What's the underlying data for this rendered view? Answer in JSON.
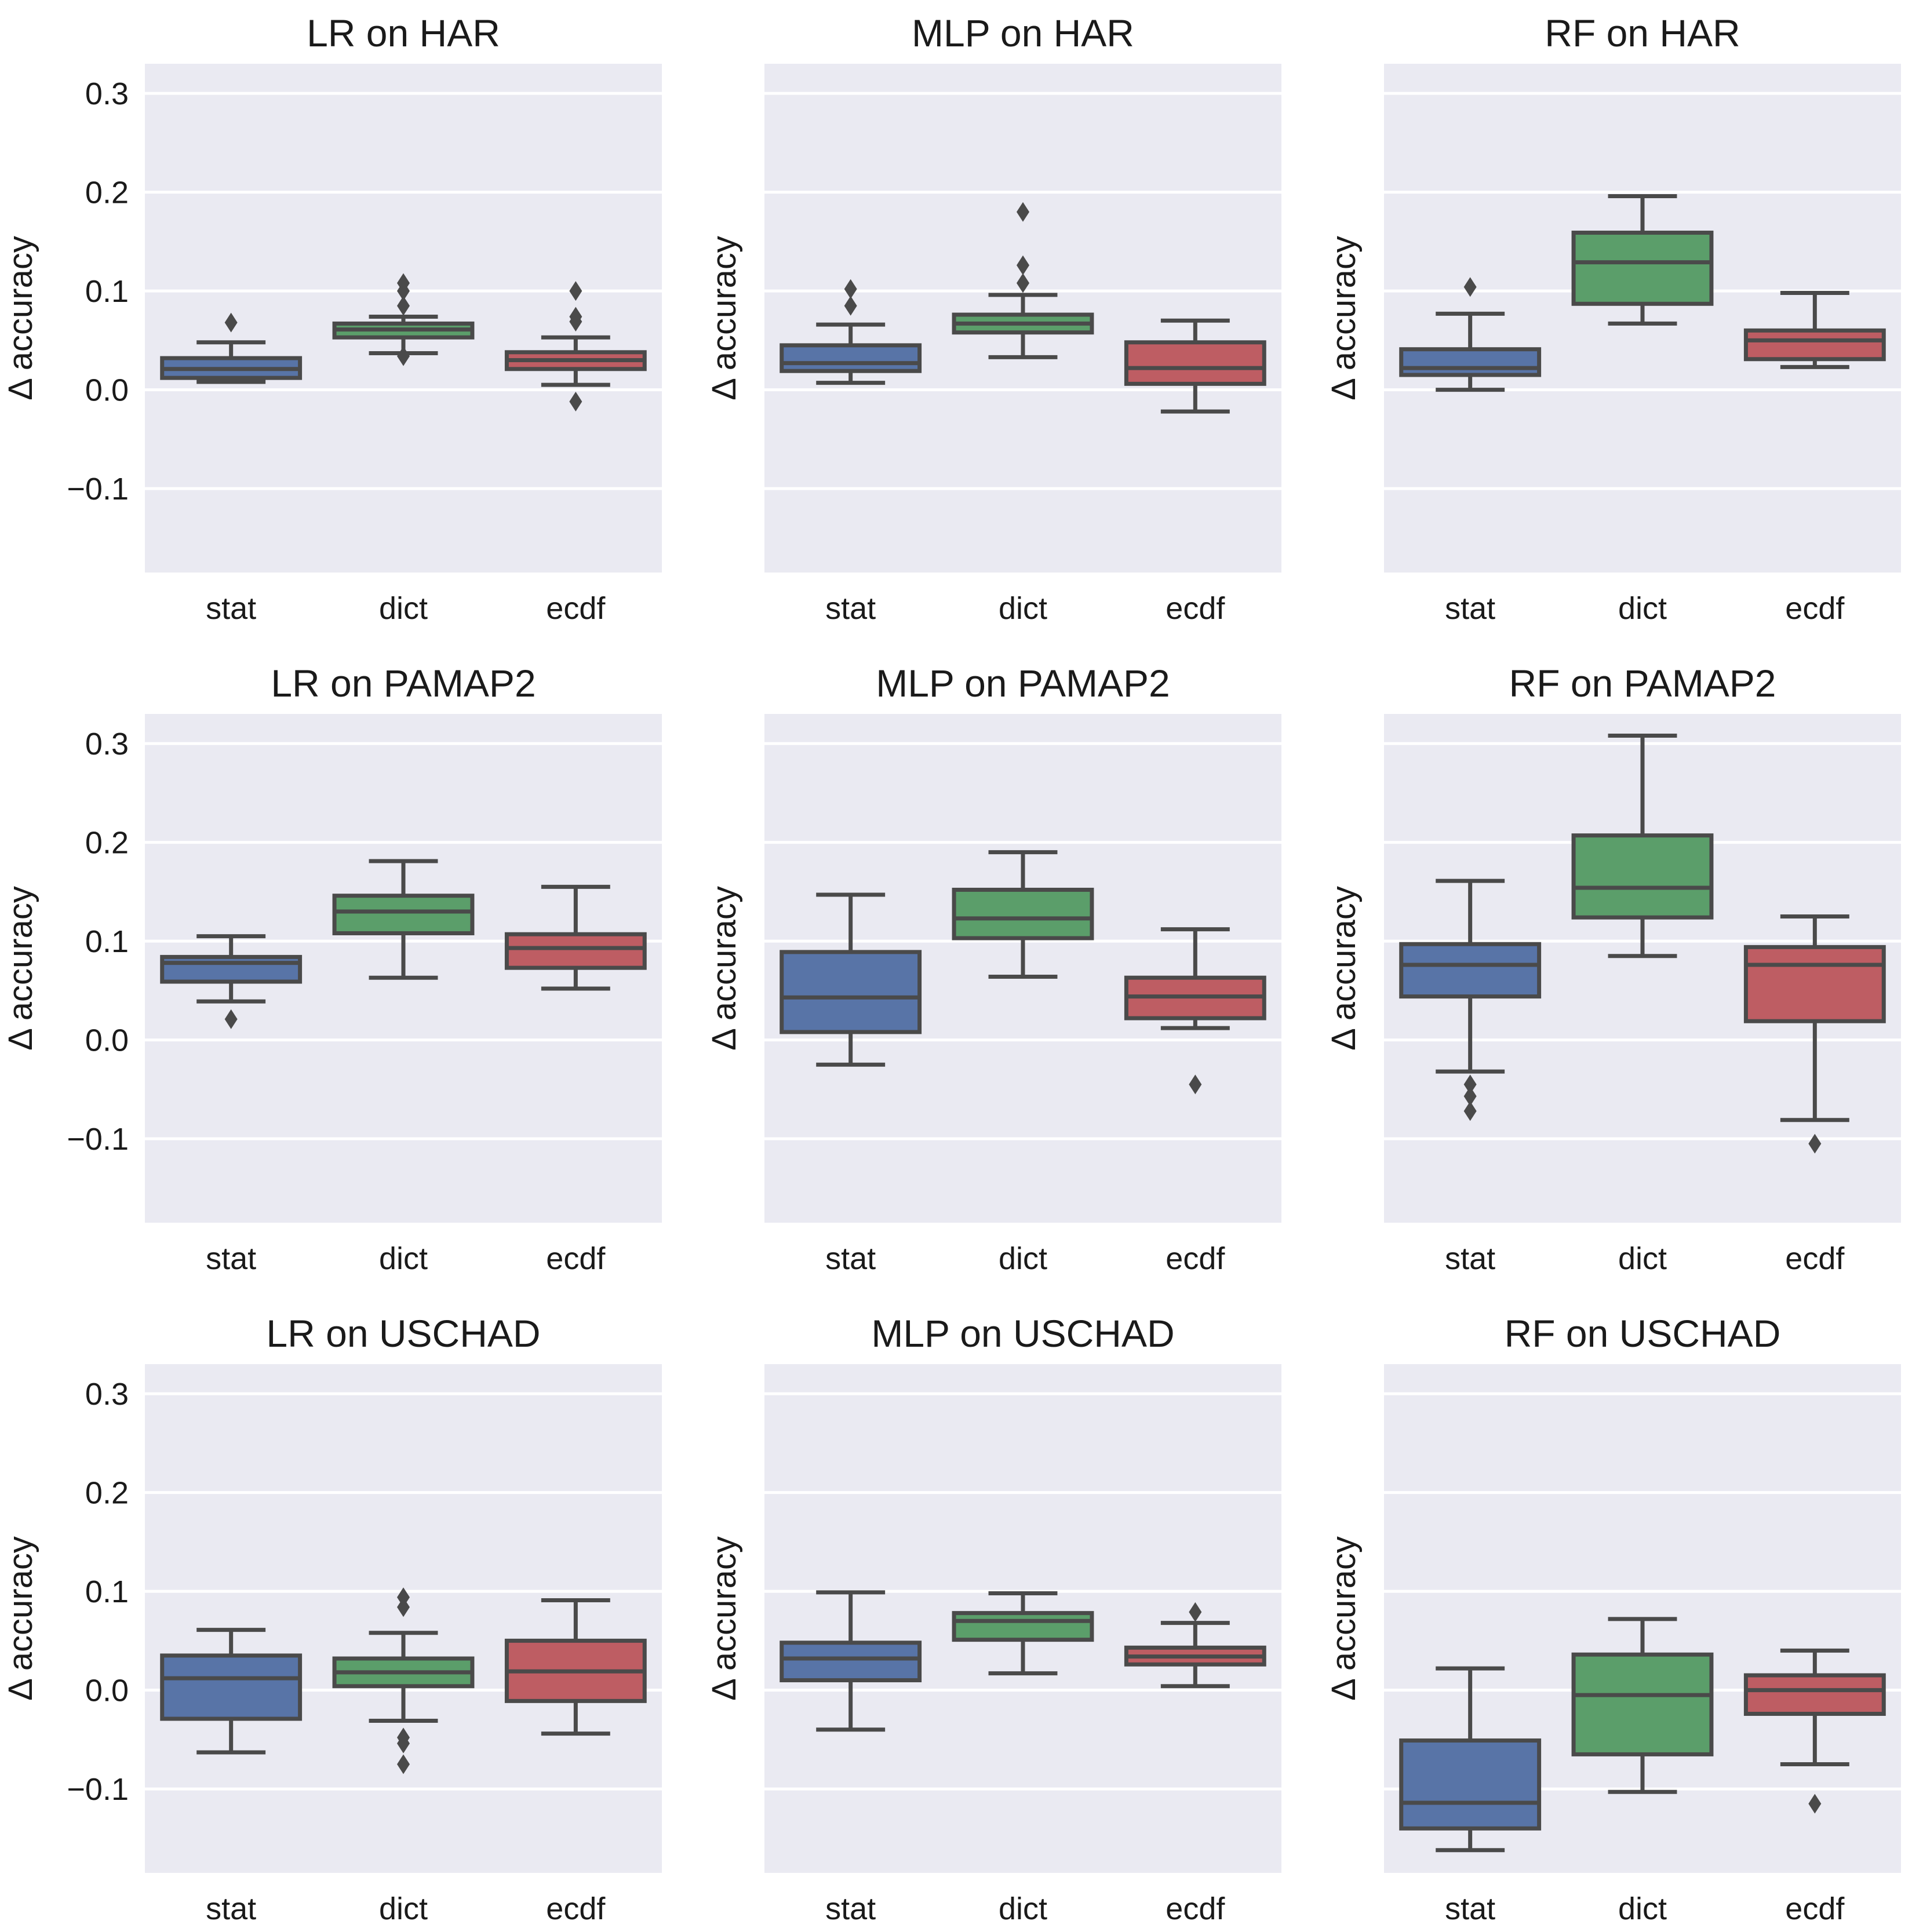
{
  "chart_data": {
    "type": "box",
    "layout": "3x3 grid",
    "shared_y": true,
    "ylabel": "Δ accuracy",
    "ylim": [
      -0.185,
      0.33
    ],
    "yticks": [
      -0.1,
      0.0,
      0.1,
      0.2,
      0.3
    ],
    "ytick_labels": [
      "−0.1",
      "0.0",
      "0.1",
      "0.2",
      "0.3"
    ],
    "grid": true,
    "categories": [
      "stat",
      "dict",
      "ecdf"
    ],
    "colors": {
      "stat": "#5874a7",
      "dict": "#5b9e6a",
      "ecdf": "#be5d63"
    },
    "panels": [
      {
        "title": "LR on HAR",
        "boxes": [
          {
            "whislo": 0.008,
            "q1": 0.012,
            "med": 0.021,
            "q3": 0.032,
            "whishi": 0.048,
            "fliers": [
              0.068
            ]
          },
          {
            "whislo": 0.037,
            "q1": 0.053,
            "med": 0.061,
            "q3": 0.067,
            "whishi": 0.074,
            "fliers": [
              0.108,
              0.1,
              0.085,
              0.034
            ]
          },
          {
            "whislo": 0.005,
            "q1": 0.021,
            "med": 0.03,
            "q3": 0.038,
            "whishi": 0.053,
            "fliers": [
              0.1,
              0.074,
              0.069,
              -0.012
            ]
          }
        ]
      },
      {
        "title": "MLP on HAR",
        "boxes": [
          {
            "whislo": 0.007,
            "q1": 0.019,
            "med": 0.027,
            "q3": 0.045,
            "whishi": 0.066,
            "fliers": [
              0.102,
              0.085
            ]
          },
          {
            "whislo": 0.033,
            "q1": 0.058,
            "med": 0.067,
            "q3": 0.076,
            "whishi": 0.096,
            "fliers": [
              0.18,
              0.126,
              0.108
            ]
          },
          {
            "whislo": -0.022,
            "q1": 0.006,
            "med": 0.022,
            "q3": 0.048,
            "whishi": 0.07,
            "fliers": []
          }
        ]
      },
      {
        "title": "RF on HAR",
        "boxes": [
          {
            "whislo": 0.0,
            "q1": 0.015,
            "med": 0.022,
            "q3": 0.041,
            "whishi": 0.077,
            "fliers": [
              0.104
            ]
          },
          {
            "whislo": 0.067,
            "q1": 0.087,
            "med": 0.129,
            "q3": 0.159,
            "whishi": 0.196,
            "fliers": []
          },
          {
            "whislo": 0.023,
            "q1": 0.031,
            "med": 0.05,
            "q3": 0.06,
            "whishi": 0.098,
            "fliers": []
          }
        ]
      },
      {
        "title": "LR on PAMAP2",
        "boxes": [
          {
            "whislo": 0.039,
            "q1": 0.059,
            "med": 0.078,
            "q3": 0.084,
            "whishi": 0.105,
            "fliers": [
              0.021
            ]
          },
          {
            "whislo": 0.063,
            "q1": 0.108,
            "med": 0.13,
            "q3": 0.146,
            "whishi": 0.181,
            "fliers": []
          },
          {
            "whislo": 0.052,
            "q1": 0.073,
            "med": 0.093,
            "q3": 0.107,
            "whishi": 0.155,
            "fliers": []
          }
        ]
      },
      {
        "title": "MLP on PAMAP2",
        "boxes": [
          {
            "whislo": -0.025,
            "q1": 0.008,
            "med": 0.043,
            "q3": 0.089,
            "whishi": 0.147,
            "fliers": []
          },
          {
            "whislo": 0.064,
            "q1": 0.103,
            "med": 0.123,
            "q3": 0.152,
            "whishi": 0.19,
            "fliers": []
          },
          {
            "whislo": 0.012,
            "q1": 0.022,
            "med": 0.044,
            "q3": 0.063,
            "whishi": 0.112,
            "fliers": [
              -0.045
            ]
          }
        ]
      },
      {
        "title": "RF on PAMAP2",
        "boxes": [
          {
            "whislo": -0.032,
            "q1": 0.044,
            "med": 0.076,
            "q3": 0.097,
            "whishi": 0.161,
            "fliers": [
              -0.045,
              -0.057,
              -0.072
            ]
          },
          {
            "whislo": 0.085,
            "q1": 0.124,
            "med": 0.154,
            "q3": 0.207,
            "whishi": 0.308,
            "fliers": []
          },
          {
            "whislo": -0.081,
            "q1": 0.019,
            "med": 0.076,
            "q3": 0.094,
            "whishi": 0.125,
            "fliers": [
              -0.105
            ]
          }
        ]
      },
      {
        "title": "LR on USCHAD",
        "boxes": [
          {
            "whislo": -0.063,
            "q1": -0.029,
            "med": 0.012,
            "q3": 0.035,
            "whishi": 0.061,
            "fliers": []
          },
          {
            "whislo": -0.031,
            "q1": 0.004,
            "med": 0.018,
            "q3": 0.032,
            "whishi": 0.058,
            "fliers": [
              0.094,
              0.084,
              -0.048,
              -0.054,
              -0.075
            ]
          },
          {
            "whislo": -0.044,
            "q1": -0.011,
            "med": 0.019,
            "q3": 0.05,
            "whishi": 0.091,
            "fliers": []
          }
        ]
      },
      {
        "title": "MLP on USCHAD",
        "boxes": [
          {
            "whislo": -0.04,
            "q1": 0.01,
            "med": 0.032,
            "q3": 0.048,
            "whishi": 0.099,
            "fliers": []
          },
          {
            "whislo": 0.017,
            "q1": 0.051,
            "med": 0.07,
            "q3": 0.078,
            "whishi": 0.098,
            "fliers": []
          },
          {
            "whislo": 0.004,
            "q1": 0.026,
            "med": 0.034,
            "q3": 0.043,
            "whishi": 0.068,
            "fliers": [
              0.079
            ]
          }
        ]
      },
      {
        "title": "RF on USCHAD",
        "boxes": [
          {
            "whislo": -0.162,
            "q1": -0.14,
            "med": -0.114,
            "q3": -0.051,
            "whishi": 0.022,
            "fliers": []
          },
          {
            "whislo": -0.103,
            "q1": -0.065,
            "med": -0.005,
            "q3": 0.036,
            "whishi": 0.072,
            "fliers": []
          },
          {
            "whislo": -0.075,
            "q1": -0.024,
            "med": 0.0,
            "q3": 0.015,
            "whishi": 0.04,
            "fliers": [
              -0.115
            ]
          }
        ]
      }
    ]
  }
}
